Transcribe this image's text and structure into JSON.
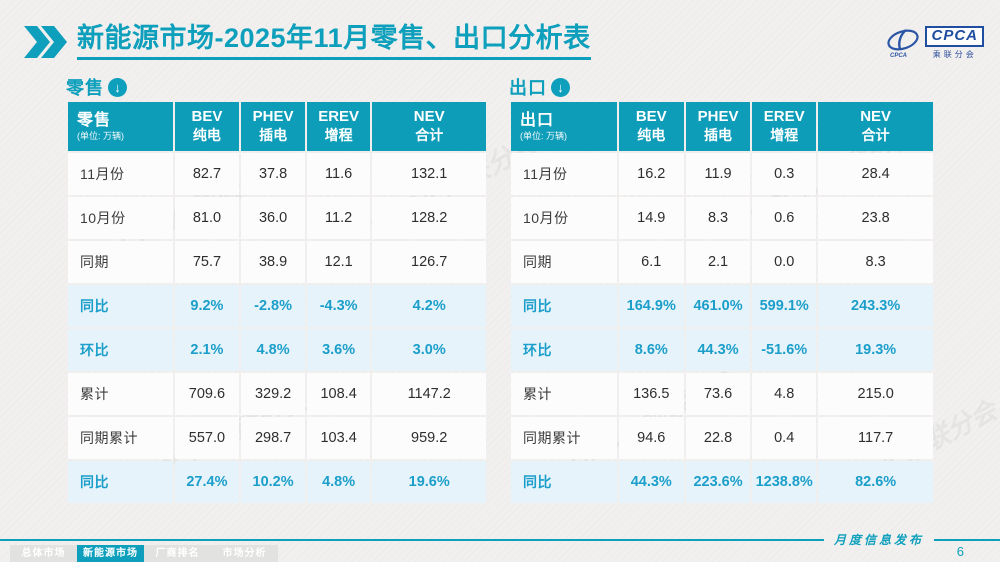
{
  "page": {
    "title": "新能源市场-2025年11月零售、出口分析表",
    "publication_label": "月度信息发布",
    "page_number": "6",
    "watermark": "CPCA 乘联分会"
  },
  "logo": {
    "abbr": "CPCA",
    "cn": "乘联分会"
  },
  "colors": {
    "teal": "#0d9fbb",
    "highlight_bg": "#e7f3fa",
    "highlight_text": "#1b9fca",
    "logo_blue": "#1f4ea1",
    "page_bg": "#f1f0ef"
  },
  "tables": [
    {
      "section_label": "零售",
      "header": {
        "title": "零售",
        "unit": "(单位: 万辆)"
      },
      "columns": [
        {
          "en": "BEV",
          "cn": "纯电"
        },
        {
          "en": "PHEV",
          "cn": "插电"
        },
        {
          "en": "EREV",
          "cn": "增程"
        },
        {
          "en": "NEV",
          "cn": "合计"
        }
      ],
      "rows": [
        {
          "label": "11月份",
          "values": [
            "82.7",
            "37.8",
            "11.6",
            "132.1"
          ],
          "highlight": false
        },
        {
          "label": "10月份",
          "values": [
            "81.0",
            "36.0",
            "11.2",
            "128.2"
          ],
          "highlight": false
        },
        {
          "label": "同期",
          "values": [
            "75.7",
            "38.9",
            "12.1",
            "126.7"
          ],
          "highlight": false
        },
        {
          "label": "同比",
          "values": [
            "9.2%",
            "-2.8%",
            "-4.3%",
            "4.2%"
          ],
          "highlight": true
        },
        {
          "label": "环比",
          "values": [
            "2.1%",
            "4.8%",
            "3.6%",
            "3.0%"
          ],
          "highlight": true
        },
        {
          "label": "累计",
          "values": [
            "709.6",
            "329.2",
            "108.4",
            "1147.2"
          ],
          "highlight": false
        },
        {
          "label": "同期累计",
          "values": [
            "557.0",
            "298.7",
            "103.4",
            "959.2"
          ],
          "highlight": false
        },
        {
          "label": "同比",
          "values": [
            "27.4%",
            "10.2%",
            "4.8%",
            "19.6%"
          ],
          "highlight": true
        }
      ]
    },
    {
      "section_label": "出口",
      "header": {
        "title": "出口",
        "unit": "(单位: 万辆)"
      },
      "columns": [
        {
          "en": "BEV",
          "cn": "纯电"
        },
        {
          "en": "PHEV",
          "cn": "插电"
        },
        {
          "en": "EREV",
          "cn": "增程"
        },
        {
          "en": "NEV",
          "cn": "合计"
        }
      ],
      "rows": [
        {
          "label": "11月份",
          "values": [
            "16.2",
            "11.9",
            "0.3",
            "28.4"
          ],
          "highlight": false
        },
        {
          "label": "10月份",
          "values": [
            "14.9",
            "8.3",
            "0.6",
            "23.8"
          ],
          "highlight": false
        },
        {
          "label": "同期",
          "values": [
            "6.1",
            "2.1",
            "0.0",
            "8.3"
          ],
          "highlight": false
        },
        {
          "label": "同比",
          "values": [
            "164.9%",
            "461.0%",
            "599.1%",
            "243.3%"
          ],
          "highlight": true
        },
        {
          "label": "环比",
          "values": [
            "8.6%",
            "44.3%",
            "-51.6%",
            "19.3%"
          ],
          "highlight": true
        },
        {
          "label": "累计",
          "values": [
            "136.5",
            "73.6",
            "4.8",
            "215.0"
          ],
          "highlight": false
        },
        {
          "label": "同期累计",
          "values": [
            "94.6",
            "22.8",
            "0.4",
            "117.7"
          ],
          "highlight": false
        },
        {
          "label": "同比",
          "values": [
            "44.3%",
            "223.6%",
            "1238.8%",
            "82.6%"
          ],
          "highlight": true
        }
      ]
    }
  ],
  "footer": {
    "tabs": [
      {
        "label": "总体市场",
        "active": false
      },
      {
        "label": "新能源市场",
        "active": true
      },
      {
        "label": "厂商排名",
        "active": false
      },
      {
        "label": "市场分析",
        "active": false
      }
    ]
  }
}
